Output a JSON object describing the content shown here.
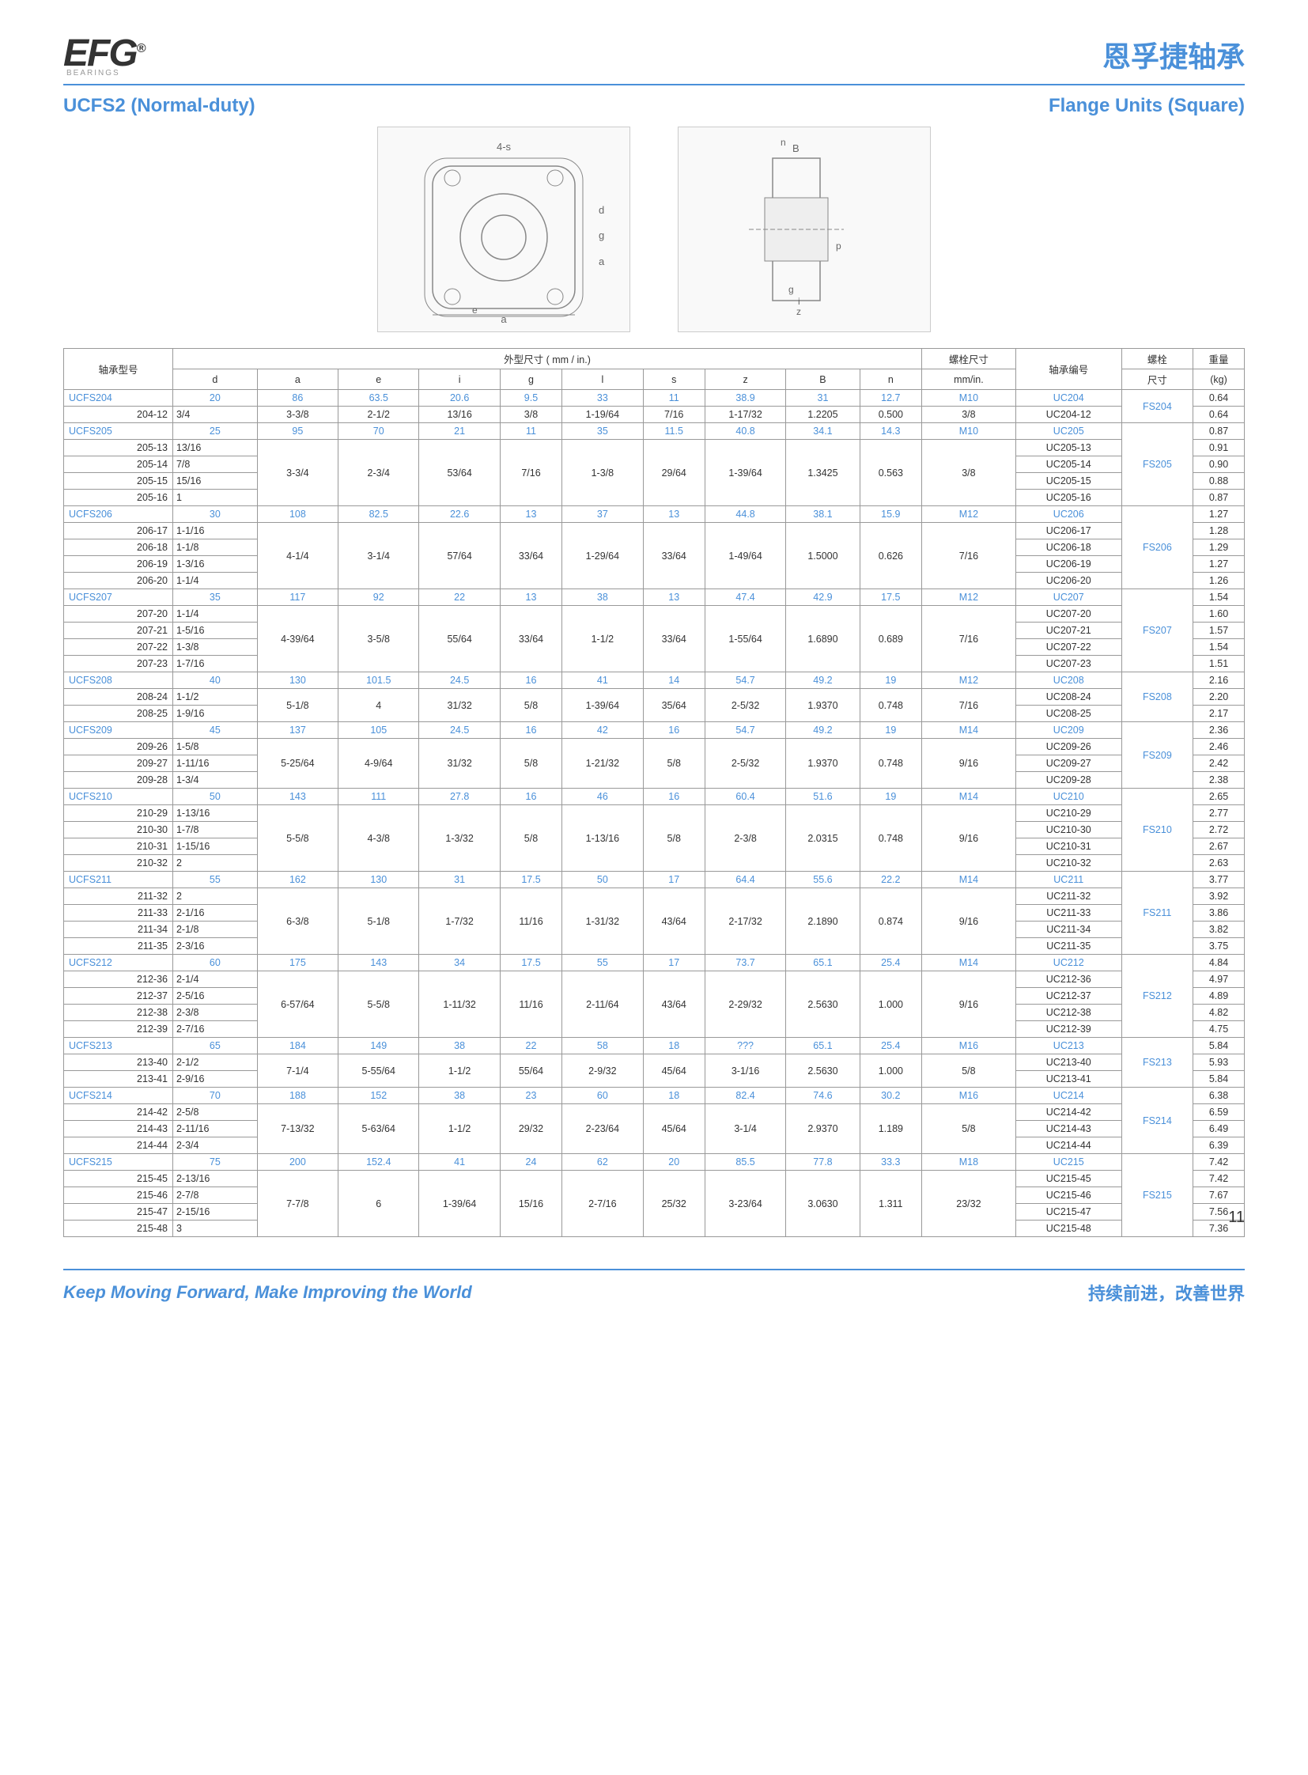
{
  "header": {
    "logo": "EFG",
    "logo_sub": "BEARINGS",
    "right": "恩孚捷轴承"
  },
  "subheader": {
    "left": "UCFS2 (Normal-duty)",
    "right": "Flange Units (Square)"
  },
  "page_number": "11",
  "footer": {
    "left": "Keep Moving Forward, Make Improving the World",
    "right": "持续前进，改善世界"
  },
  "table": {
    "head1": {
      "c0": "轴承型号",
      "c1": "外型尺寸 ( mm / in.)",
      "c2": "螺栓尺寸",
      "c3": "轴承编号",
      "c4": "螺栓",
      "c5": "重量"
    },
    "head2": {
      "d": "d",
      "a": "a",
      "e": "e",
      "i": "i",
      "g": "g",
      "l": "l",
      "s": "s",
      "z": "z",
      "B": "B",
      "n": "n",
      "mm": "mm/in.",
      "bolt": "尺寸",
      "wt": "(kg)"
    }
  },
  "groups": [
    {
      "name": "UCFS204",
      "mm": [
        "20",
        "86",
        "63.5",
        "20.6",
        "9.5",
        "33",
        "11",
        "38.9",
        "31",
        "12.7",
        "M10"
      ],
      "uc_mm": "UC204",
      "bolt": "FS204",
      "wt_mm": "0.64",
      "rows": [
        {
          "label": "204-12",
          "d": "3/4",
          "vals": [
            "3-3/8",
            "2-1/2",
            "13/16",
            "3/8",
            "1-19/64",
            "7/16",
            "1-17/32",
            "1.2205",
            "0.500",
            "3/8"
          ],
          "uc": "UC204-12",
          "wt": "0.64"
        }
      ]
    },
    {
      "name": "UCFS205",
      "mm": [
        "25",
        "95",
        "70",
        "21",
        "11",
        "35",
        "11.5",
        "40.8",
        "34.1",
        "14.3",
        "M10"
      ],
      "uc_mm": "UC205",
      "bolt": "FS205",
      "wt_mm": "0.87",
      "rows": [
        {
          "label": "205-13",
          "d": "13/16",
          "vals": [
            "",
            "",
            "",
            "",
            "",
            "",
            "",
            "",
            "",
            ""
          ],
          "uc": "UC205-13",
          "wt": "0.91"
        },
        {
          "label": "205-14",
          "d": "7/8",
          "vals": [
            "3-3/4",
            "2-3/4",
            "53/64",
            "7/16",
            "1-3/8",
            "29/64",
            "1-39/64",
            "1.3425",
            "0.563",
            "3/8"
          ],
          "uc": "UC205-14",
          "wt": "0.90"
        },
        {
          "label": "205-15",
          "d": "15/16",
          "vals": [
            "",
            "",
            "",
            "",
            "",
            "",
            "",
            "",
            "",
            ""
          ],
          "uc": "UC205-15",
          "wt": "0.88"
        },
        {
          "label": "205-16",
          "d": "1",
          "vals": [
            "",
            "",
            "",
            "",
            "",
            "",
            "",
            "",
            "",
            ""
          ],
          "uc": "UC205-16",
          "wt": "0.87"
        }
      ]
    },
    {
      "name": "UCFS206",
      "mm": [
        "30",
        "108",
        "82.5",
        "22.6",
        "13",
        "37",
        "13",
        "44.8",
        "38.1",
        "15.9",
        "M12"
      ],
      "uc_mm": "UC206",
      "bolt": "FS206",
      "wt_mm": "1.27",
      "rows": [
        {
          "label": "206-17",
          "d": "1-1/16",
          "vals": [
            "",
            "",
            "",
            "",
            "",
            "",
            "",
            "",
            "",
            ""
          ],
          "uc": "UC206-17",
          "wt": "1.28"
        },
        {
          "label": "206-18",
          "d": "1-1/8",
          "vals": [
            "4-1/4",
            "3-1/4",
            "57/64",
            "33/64",
            "1-29/64",
            "33/64",
            "1-49/64",
            "1.5000",
            "0.626",
            "7/16"
          ],
          "uc": "UC206-18",
          "wt": "1.29"
        },
        {
          "label": "206-19",
          "d": "1-3/16",
          "vals": [
            "",
            "",
            "",
            "",
            "",
            "",
            "",
            "",
            "",
            ""
          ],
          "uc": "UC206-19",
          "wt": "1.27"
        },
        {
          "label": "206-20",
          "d": "1-1/4",
          "vals": [
            "",
            "",
            "",
            "",
            "",
            "",
            "",
            "",
            "",
            ""
          ],
          "uc": "UC206-20",
          "wt": "1.26"
        }
      ]
    },
    {
      "name": "UCFS207",
      "mm": [
        "35",
        "117",
        "92",
        "22",
        "13",
        "38",
        "13",
        "47.4",
        "42.9",
        "17.5",
        "M12"
      ],
      "uc_mm": "UC207",
      "bolt": "FS207",
      "wt_mm": "1.54",
      "rows": [
        {
          "label": "207-20",
          "d": "1-1/4",
          "vals": [
            "",
            "",
            "",
            "",
            "",
            "",
            "",
            "",
            "",
            ""
          ],
          "uc": "UC207-20",
          "wt": "1.60"
        },
        {
          "label": "207-21",
          "d": "1-5/16",
          "vals": [
            "4-39/64",
            "3-5/8",
            "55/64",
            "33/64",
            "1-1/2",
            "33/64",
            "1-55/64",
            "1.6890",
            "0.689",
            "7/16"
          ],
          "uc": "UC207-21",
          "wt": "1.57"
        },
        {
          "label": "207-22",
          "d": "1-3/8",
          "vals": [
            "",
            "",
            "",
            "",
            "",
            "",
            "",
            "",
            "",
            ""
          ],
          "uc": "UC207-22",
          "wt": "1.54"
        },
        {
          "label": "207-23",
          "d": "1-7/16",
          "vals": [
            "",
            "",
            "",
            "",
            "",
            "",
            "",
            "",
            "",
            ""
          ],
          "uc": "UC207-23",
          "wt": "1.51"
        }
      ]
    },
    {
      "name": "UCFS208",
      "mm": [
        "40",
        "130",
        "101.5",
        "24.5",
        "16",
        "41",
        "14",
        "54.7",
        "49.2",
        "19",
        "M12"
      ],
      "uc_mm": "UC208",
      "bolt": "FS208",
      "wt_mm": "2.16",
      "rows": [
        {
          "label": "208-24",
          "d": "1-1/2",
          "vals": [
            "5-1/8",
            "4",
            "31/32",
            "5/8",
            "1-39/64",
            "35/64",
            "2-5/32",
            "1.9370",
            "0.748",
            "7/16"
          ],
          "uc": "UC208-24",
          "wt": "2.20"
        },
        {
          "label": "208-25",
          "d": "1-9/16",
          "vals": [
            "",
            "",
            "",
            "",
            "",
            "",
            "",
            "",
            "",
            ""
          ],
          "uc": "UC208-25",
          "wt": "2.17"
        }
      ]
    },
    {
      "name": "UCFS209",
      "mm": [
        "45",
        "137",
        "105",
        "24.5",
        "16",
        "42",
        "16",
        "54.7",
        "49.2",
        "19",
        "M14"
      ],
      "uc_mm": "UC209",
      "bolt": "FS209",
      "wt_mm": "2.36",
      "rows": [
        {
          "label": "209-26",
          "d": "1-5/8",
          "vals": [
            "",
            "",
            "",
            "",
            "",
            "",
            "",
            "",
            "",
            ""
          ],
          "uc": "UC209-26",
          "wt": "2.46"
        },
        {
          "label": "209-27",
          "d": "1-11/16",
          "vals": [
            "5-25/64",
            "4-9/64",
            "31/32",
            "5/8",
            "1-21/32",
            "5/8",
            "2-5/32",
            "1.9370",
            "0.748",
            "9/16"
          ],
          "uc": "UC209-27",
          "wt": "2.42"
        },
        {
          "label": "209-28",
          "d": "1-3/4",
          "vals": [
            "",
            "",
            "",
            "",
            "",
            "",
            "",
            "",
            "",
            ""
          ],
          "uc": "UC209-28",
          "wt": "2.38"
        }
      ]
    },
    {
      "name": "UCFS210",
      "mm": [
        "50",
        "143",
        "111",
        "27.8",
        "16",
        "46",
        "16",
        "60.4",
        "51.6",
        "19",
        "M14"
      ],
      "uc_mm": "UC210",
      "bolt": "FS210",
      "wt_mm": "2.65",
      "rows": [
        {
          "label": "210-29",
          "d": "1-13/16",
          "vals": [
            "",
            "",
            "",
            "",
            "",
            "",
            "",
            "",
            "",
            ""
          ],
          "uc": "UC210-29",
          "wt": "2.77"
        },
        {
          "label": "210-30",
          "d": "1-7/8",
          "vals": [
            "5-5/8",
            "4-3/8",
            "1-3/32",
            "5/8",
            "1-13/16",
            "5/8",
            "2-3/8",
            "2.0315",
            "0.748",
            "9/16"
          ],
          "uc": "UC210-30",
          "wt": "2.72"
        },
        {
          "label": "210-31",
          "d": "1-15/16",
          "vals": [
            "",
            "",
            "",
            "",
            "",
            "",
            "",
            "",
            "",
            ""
          ],
          "uc": "UC210-31",
          "wt": "2.67"
        },
        {
          "label": "210-32",
          "d": "2",
          "vals": [
            "",
            "",
            "",
            "",
            "",
            "",
            "",
            "",
            "",
            ""
          ],
          "uc": "UC210-32",
          "wt": "2.63"
        }
      ]
    },
    {
      "name": "UCFS211",
      "mm": [
        "55",
        "162",
        "130",
        "31",
        "17.5",
        "50",
        "17",
        "64.4",
        "55.6",
        "22.2",
        "M14"
      ],
      "uc_mm": "UC211",
      "bolt": "FS211",
      "wt_mm": "3.77",
      "rows": [
        {
          "label": "211-32",
          "d": "2",
          "vals": [
            "",
            "",
            "",
            "",
            "",
            "",
            "",
            "",
            "",
            ""
          ],
          "uc": "UC211-32",
          "wt": "3.92"
        },
        {
          "label": "211-33",
          "d": "2-1/16",
          "vals": [
            "6-3/8",
            "5-1/8",
            "1-7/32",
            "11/16",
            "1-31/32",
            "43/64",
            "2-17/32",
            "2.1890",
            "0.874",
            "9/16"
          ],
          "uc": "UC211-33",
          "wt": "3.86"
        },
        {
          "label": "211-34",
          "d": "2-1/8",
          "vals": [
            "",
            "",
            "",
            "",
            "",
            "",
            "",
            "",
            "",
            ""
          ],
          "uc": "UC211-34",
          "wt": "3.82"
        },
        {
          "label": "211-35",
          "d": "2-3/16",
          "vals": [
            "",
            "",
            "",
            "",
            "",
            "",
            "",
            "",
            "",
            ""
          ],
          "uc": "UC211-35",
          "wt": "3.75"
        }
      ]
    },
    {
      "name": "UCFS212",
      "mm": [
        "60",
        "175",
        "143",
        "34",
        "17.5",
        "55",
        "17",
        "73.7",
        "65.1",
        "25.4",
        "M14"
      ],
      "uc_mm": "UC212",
      "bolt": "FS212",
      "wt_mm": "4.84",
      "rows": [
        {
          "label": "212-36",
          "d": "2-1/4",
          "vals": [
            "",
            "",
            "",
            "",
            "",
            "",
            "",
            "",
            "",
            ""
          ],
          "uc": "UC212-36",
          "wt": "4.97"
        },
        {
          "label": "212-37",
          "d": "2-5/16",
          "vals": [
            "6-57/64",
            "5-5/8",
            "1-11/32",
            "11/16",
            "2-11/64",
            "43/64",
            "2-29/32",
            "2.5630",
            "1.000",
            "9/16"
          ],
          "uc": "UC212-37",
          "wt": "4.89"
        },
        {
          "label": "212-38",
          "d": "2-3/8",
          "vals": [
            "",
            "",
            "",
            "",
            "",
            "",
            "",
            "",
            "",
            ""
          ],
          "uc": "UC212-38",
          "wt": "4.82"
        },
        {
          "label": "212-39",
          "d": "2-7/16",
          "vals": [
            "",
            "",
            "",
            "",
            "",
            "",
            "",
            "",
            "",
            ""
          ],
          "uc": "UC212-39",
          "wt": "4.75"
        }
      ]
    },
    {
      "name": "UCFS213",
      "mm": [
        "65",
        "184",
        "149",
        "38",
        "22",
        "58",
        "18",
        "???",
        "65.1",
        "25.4",
        "M16"
      ],
      "uc_mm": "UC213",
      "bolt": "FS213",
      "wt_mm": "5.84",
      "rows": [
        {
          "label": "213-40",
          "d": "2-1/2",
          "vals": [
            "7-1/4",
            "5-55/64",
            "1-1/2",
            "55/64",
            "2-9/32",
            "45/64",
            "3-1/16",
            "2.5630",
            "1.000",
            "5/8"
          ],
          "uc": "UC213-40",
          "wt": "5.93"
        },
        {
          "label": "213-41",
          "d": "2-9/16",
          "vals": [
            "",
            "",
            "",
            "",
            "",
            "",
            "",
            "",
            "",
            ""
          ],
          "uc": "UC213-41",
          "wt": "5.84"
        }
      ]
    },
    {
      "name": "UCFS214",
      "mm": [
        "70",
        "188",
        "152",
        "38",
        "23",
        "60",
        "18",
        "82.4",
        "74.6",
        "30.2",
        "M16"
      ],
      "uc_mm": "UC214",
      "bolt": "FS214",
      "wt_mm": "6.38",
      "rows": [
        {
          "label": "214-42",
          "d": "2-5/8",
          "vals": [
            "",
            "",
            "",
            "",
            "",
            "",
            "",
            "",
            "",
            ""
          ],
          "uc": "UC214-42",
          "wt": "6.59"
        },
        {
          "label": "214-43",
          "d": "2-11/16",
          "vals": [
            "7-13/32",
            "5-63/64",
            "1-1/2",
            "29/32",
            "2-23/64",
            "45/64",
            "3-1/4",
            "2.9370",
            "1.189",
            "5/8"
          ],
          "uc": "UC214-43",
          "wt": "6.49"
        },
        {
          "label": "214-44",
          "d": "2-3/4",
          "vals": [
            "",
            "",
            "",
            "",
            "",
            "",
            "",
            "",
            "",
            ""
          ],
          "uc": "UC214-44",
          "wt": "6.39"
        }
      ]
    },
    {
      "name": "UCFS215",
      "mm": [
        "75",
        "200",
        "152.4",
        "41",
        "24",
        "62",
        "20",
        "85.5",
        "77.8",
        "33.3",
        "M18"
      ],
      "uc_mm": "UC215",
      "bolt": "FS215",
      "wt_mm": "7.42",
      "rows": [
        {
          "label": "215-45",
          "d": "2-13/16",
          "vals": [
            "",
            "",
            "",
            "",
            "",
            "",
            "",
            "",
            "",
            ""
          ],
          "uc": "UC215-45",
          "wt": "7.42"
        },
        {
          "label": "215-46",
          "d": "2-7/8",
          "vals": [
            "7-7/8",
            "6",
            "1-39/64",
            "15/16",
            "2-7/16",
            "25/32",
            "3-23/64",
            "3.0630",
            "1.311",
            "23/32"
          ],
          "uc": "UC215-46",
          "wt": "7.67"
        },
        {
          "label": "215-47",
          "d": "2-15/16",
          "vals": [
            "",
            "",
            "",
            "",
            "",
            "",
            "",
            "",
            "",
            ""
          ],
          "uc": "UC215-47",
          "wt": "7.56"
        },
        {
          "label": "215-48",
          "d": "3",
          "vals": [
            "",
            "",
            "",
            "",
            "",
            "",
            "",
            "",
            "",
            ""
          ],
          "uc": "UC215-48",
          "wt": "7.36"
        }
      ]
    }
  ]
}
